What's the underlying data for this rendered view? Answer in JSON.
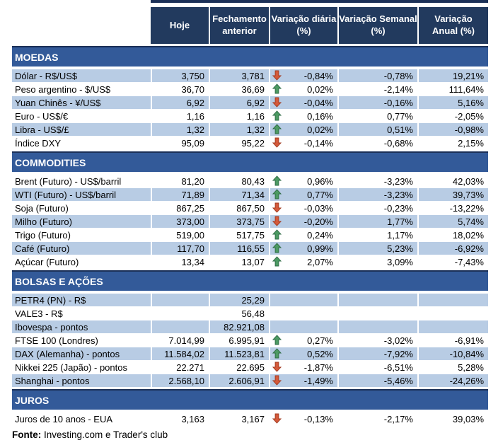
{
  "colors": {
    "header_bg": "#223A5E",
    "section_bg": "#335A99",
    "row_shade": "#B8CCE4",
    "row_plain": "#FFFFFF",
    "border_dark": "#1B3057",
    "up_arrow": "#4C9A63",
    "down_arrow": "#D4593A"
  },
  "header": {
    "columns": [
      {
        "line1": "Hoje",
        "line2": ""
      },
      {
        "line1": "Fechamento",
        "line2": "anterior"
      },
      {
        "line1": "Variação diária",
        "line2": "(%)"
      },
      {
        "line1": "Variação Semanal",
        "line2": "(%)"
      },
      {
        "line1": "Variação",
        "line2": "Anual (%)"
      }
    ]
  },
  "sections": [
    {
      "title": "MOEDAS",
      "rows": [
        {
          "label": "Dólar - R$/US$",
          "hoje": "3,750",
          "fech": "3,781",
          "arrow": "down",
          "vd": "-0,84%",
          "vs": "-0,78%",
          "va": "19,21%",
          "shaded": true
        },
        {
          "label": "Peso argentino - $/US$",
          "hoje": "36,70",
          "fech": "36,69",
          "arrow": "up",
          "vd": "0,02%",
          "vs": "-2,14%",
          "va": "111,64%",
          "shaded": false
        },
        {
          "label": "Yuan Chinês - ¥/US$",
          "hoje": "6,92",
          "fech": "6,92",
          "arrow": "down",
          "vd": "-0,04%",
          "vs": "-0,16%",
          "va": "5,16%",
          "shaded": true
        },
        {
          "label": "Euro - US$/€",
          "hoje": "1,16",
          "fech": "1,16",
          "arrow": "up",
          "vd": "0,16%",
          "vs": "0,77%",
          "va": "-2,05%",
          "shaded": false
        },
        {
          "label": "Libra - US$/£",
          "hoje": "1,32",
          "fech": "1,32",
          "arrow": "up",
          "vd": "0,02%",
          "vs": "0,51%",
          "va": "-0,98%",
          "shaded": true
        },
        {
          "label": "Índice DXY",
          "hoje": "95,09",
          "fech": "95,22",
          "arrow": "down",
          "vd": "-0,14%",
          "vs": "-0,68%",
          "va": "2,15%",
          "shaded": false
        }
      ]
    },
    {
      "title": "COMMODITIES",
      "rows": [
        {
          "label": "Brent (Futuro) - US$/barril",
          "hoje": "81,20",
          "fech": "80,43",
          "arrow": "up",
          "vd": "0,96%",
          "vs": "-3,23%",
          "va": "42,03%",
          "shaded": false
        },
        {
          "label": "WTI (Futuro) - US$/barril",
          "hoje": "71,89",
          "fech": "71,34",
          "arrow": "up",
          "vd": "0,77%",
          "vs": "-3,23%",
          "va": "39,73%",
          "shaded": true
        },
        {
          "label": "Soja (Futuro)",
          "hoje": "867,25",
          "fech": "867,50",
          "arrow": "down",
          "vd": "-0,03%",
          "vs": "-0,23%",
          "va": "-13,22%",
          "shaded": false
        },
        {
          "label": "Milho (Futuro)",
          "hoje": "373,00",
          "fech": "373,75",
          "arrow": "down",
          "vd": "-0,20%",
          "vs": "1,77%",
          "va": "5,74%",
          "shaded": true
        },
        {
          "label": "Trigo (Futuro)",
          "hoje": "519,00",
          "fech": "517,75",
          "arrow": "up",
          "vd": "0,24%",
          "vs": "1,17%",
          "va": "18,02%",
          "shaded": false
        },
        {
          "label": "Café (Futuro)",
          "hoje": "117,70",
          "fech": "116,55",
          "arrow": "up",
          "vd": "0,99%",
          "vs": "5,23%",
          "va": "-6,92%",
          "shaded": true
        },
        {
          "label": "Açúcar (Futuro)",
          "hoje": "13,34",
          "fech": "13,07",
          "arrow": "up",
          "vd": "2,07%",
          "vs": "3,09%",
          "va": "-7,43%",
          "shaded": false
        }
      ]
    },
    {
      "title": "BOLSAS E AÇÕES",
      "rows": [
        {
          "label": "PETR4 (PN) - R$",
          "hoje": "",
          "fech": "25,29",
          "arrow": null,
          "vd": "",
          "vs": "",
          "va": "",
          "shaded": true
        },
        {
          "label": "VALE3 - R$",
          "hoje": "",
          "fech": "56,48",
          "arrow": null,
          "vd": "",
          "vs": "",
          "va": "",
          "shaded": false
        },
        {
          "label": "Ibovespa - pontos",
          "hoje": "",
          "fech": "82.921,08",
          "arrow": null,
          "vd": "",
          "vs": "",
          "va": "",
          "shaded": true
        },
        {
          "label": "FTSE 100 (Londres)",
          "hoje": "7.014,99",
          "fech": "6.995,91",
          "arrow": "up",
          "vd": "0,27%",
          "vs": "-3,02%",
          "va": "-6,91%",
          "shaded": false
        },
        {
          "label": "DAX (Alemanha) - pontos",
          "hoje": "11.584,02",
          "fech": "11.523,81",
          "arrow": "up",
          "vd": "0,52%",
          "vs": "-7,92%",
          "va": "-10,84%",
          "shaded": true
        },
        {
          "label": "Nikkei 225 (Japão) - pontos",
          "hoje": "22.271",
          "fech": "22.695",
          "arrow": "down",
          "vd": "-1,87%",
          "vs": "-6,51%",
          "va": "5,28%",
          "shaded": false
        },
        {
          "label": "Shanghai - pontos",
          "hoje": "2.568,10",
          "fech": "2.606,91",
          "arrow": "down",
          "vd": "-1,49%",
          "vs": "-5,46%",
          "va": "-24,26%",
          "shaded": true
        }
      ]
    },
    {
      "title": "JUROS",
      "rows": [
        {
          "label": "Juros de 10 anos - EUA",
          "hoje": "3,163",
          "fech": "3,167",
          "arrow": "down",
          "vd": "-0,13%",
          "vs": "-2,17%",
          "va": "39,03%",
          "shaded": false
        }
      ]
    }
  ],
  "footer": {
    "label": "Fonte:",
    "text": " Investing.com e Trader's club"
  }
}
